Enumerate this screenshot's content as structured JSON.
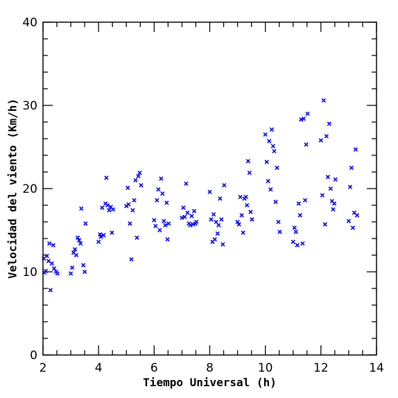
{
  "chart_data": {
    "type": "scatter",
    "title": "",
    "xlabel": "Tiempo Universal (h)",
    "ylabel": "Velocidad del viento (Km/h)",
    "xlim": [
      2,
      14
    ],
    "ylim": [
      0,
      40
    ],
    "xticks": [
      2,
      4,
      6,
      8,
      10,
      12,
      14
    ],
    "yticks": [
      0,
      10,
      20,
      30,
      40
    ],
    "xticks_minor_step": 0.5,
    "yticks_minor_step": 2,
    "grid": false,
    "legend": "none",
    "marker": "x",
    "color": "#0000ff",
    "series": [
      {
        "values": [
          [
            2.03,
            11.6
          ],
          [
            2.05,
            9.9
          ],
          [
            2.1,
            10.1
          ],
          [
            2.14,
            11.9
          ],
          [
            2.2,
            11.3
          ],
          [
            2.23,
            13.4
          ],
          [
            2.27,
            7.8
          ],
          [
            2.32,
            11.0
          ],
          [
            2.37,
            13.2
          ],
          [
            2.4,
            10.4
          ],
          [
            2.47,
            10.0
          ],
          [
            2.52,
            9.8
          ],
          [
            3.0,
            9.8
          ],
          [
            3.05,
            10.5
          ],
          [
            3.1,
            12.3
          ],
          [
            3.15,
            12.7
          ],
          [
            3.2,
            12.0
          ],
          [
            3.25,
            14.1
          ],
          [
            3.3,
            13.8
          ],
          [
            3.35,
            13.4
          ],
          [
            3.38,
            17.6
          ],
          [
            3.45,
            10.8
          ],
          [
            3.5,
            10.0
          ],
          [
            3.53,
            15.8
          ],
          [
            4.0,
            13.6
          ],
          [
            4.05,
            14.5
          ],
          [
            4.08,
            14.2
          ],
          [
            4.13,
            17.7
          ],
          [
            4.18,
            14.4
          ],
          [
            4.25,
            18.2
          ],
          [
            4.28,
            21.3
          ],
          [
            4.32,
            18.0
          ],
          [
            4.38,
            17.4
          ],
          [
            4.44,
            17.8
          ],
          [
            4.48,
            14.7
          ],
          [
            4.52,
            17.5
          ],
          [
            5.0,
            17.9
          ],
          [
            5.05,
            20.1
          ],
          [
            5.08,
            18.1
          ],
          [
            5.13,
            15.8
          ],
          [
            5.18,
            11.5
          ],
          [
            5.23,
            17.4
          ],
          [
            5.28,
            18.6
          ],
          [
            5.33,
            21.0
          ],
          [
            5.38,
            14.1
          ],
          [
            5.43,
            21.5
          ],
          [
            5.48,
            21.9
          ],
          [
            5.53,
            20.4
          ],
          [
            6.0,
            16.2
          ],
          [
            6.05,
            15.5
          ],
          [
            6.1,
            18.6
          ],
          [
            6.15,
            19.9
          ],
          [
            6.2,
            15.0
          ],
          [
            6.25,
            21.2
          ],
          [
            6.3,
            19.4
          ],
          [
            6.35,
            16.1
          ],
          [
            6.4,
            15.6
          ],
          [
            6.45,
            18.3
          ],
          [
            6.48,
            13.9
          ],
          [
            6.52,
            15.8
          ],
          [
            7.0,
            16.5
          ],
          [
            7.05,
            17.7
          ],
          [
            7.1,
            16.6
          ],
          [
            7.15,
            20.6
          ],
          [
            7.2,
            17.1
          ],
          [
            7.25,
            15.8
          ],
          [
            7.3,
            15.6
          ],
          [
            7.35,
            16.7
          ],
          [
            7.4,
            15.7
          ],
          [
            7.44,
            17.3
          ],
          [
            7.48,
            15.8
          ],
          [
            7.52,
            16.0
          ],
          [
            8.0,
            19.6
          ],
          [
            8.05,
            16.3
          ],
          [
            8.1,
            13.6
          ],
          [
            8.14,
            16.9
          ],
          [
            8.18,
            13.9
          ],
          [
            8.23,
            16.0
          ],
          [
            8.28,
            14.6
          ],
          [
            8.32,
            15.6
          ],
          [
            8.37,
            18.8
          ],
          [
            8.42,
            16.3
          ],
          [
            8.47,
            13.3
          ],
          [
            8.52,
            20.4
          ],
          [
            9.0,
            16.0
          ],
          [
            9.05,
            15.7
          ],
          [
            9.1,
            19.0
          ],
          [
            9.15,
            16.8
          ],
          [
            9.2,
            14.7
          ],
          [
            9.25,
            18.8
          ],
          [
            9.3,
            19.0
          ],
          [
            9.34,
            18.0
          ],
          [
            9.38,
            23.3
          ],
          [
            9.43,
            21.9
          ],
          [
            9.47,
            17.2
          ],
          [
            9.52,
            16.3
          ],
          [
            10.0,
            26.5
          ],
          [
            10.05,
            23.2
          ],
          [
            10.1,
            20.9
          ],
          [
            10.14,
            25.7
          ],
          [
            10.19,
            19.9
          ],
          [
            10.23,
            27.1
          ],
          [
            10.28,
            25.1
          ],
          [
            10.32,
            24.5
          ],
          [
            10.37,
            18.4
          ],
          [
            10.42,
            22.5
          ],
          [
            10.47,
            16.0
          ],
          [
            10.52,
            14.8
          ],
          [
            11.0,
            13.6
          ],
          [
            11.05,
            15.3
          ],
          [
            11.1,
            14.8
          ],
          [
            11.15,
            13.2
          ],
          [
            11.2,
            18.2
          ],
          [
            11.25,
            16.8
          ],
          [
            11.29,
            28.3
          ],
          [
            11.34,
            13.4
          ],
          [
            11.38,
            28.4
          ],
          [
            11.43,
            18.6
          ],
          [
            11.47,
            25.3
          ],
          [
            11.52,
            29.0
          ],
          [
            12.0,
            25.8
          ],
          [
            12.05,
            19.2
          ],
          [
            12.1,
            30.6
          ],
          [
            12.15,
            15.7
          ],
          [
            12.2,
            26.3
          ],
          [
            12.25,
            21.4
          ],
          [
            12.3,
            27.8
          ],
          [
            12.35,
            20.0
          ],
          [
            12.4,
            18.5
          ],
          [
            12.44,
            17.5
          ],
          [
            12.48,
            18.2
          ],
          [
            12.52,
            21.1
          ],
          [
            13.0,
            16.1
          ],
          [
            13.05,
            20.2
          ],
          [
            13.1,
            22.5
          ],
          [
            13.15,
            15.3
          ],
          [
            13.2,
            17.1
          ],
          [
            13.25,
            24.7
          ],
          [
            13.3,
            16.8
          ]
        ]
      }
    ]
  }
}
